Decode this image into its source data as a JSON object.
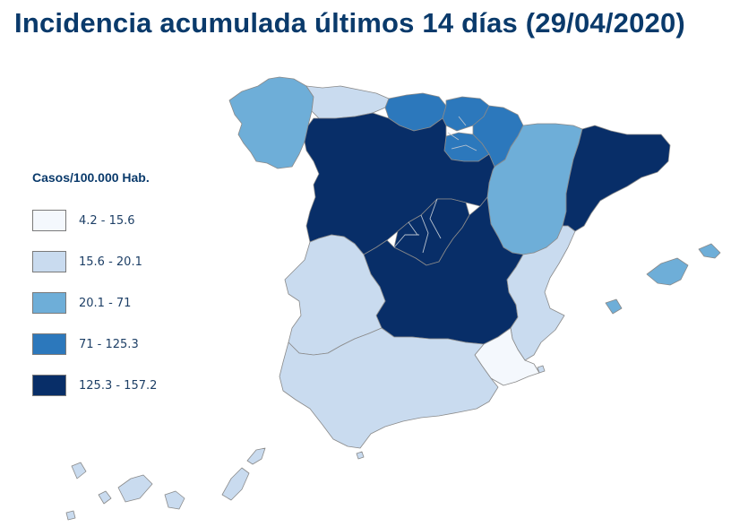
{
  "title": "Incidencia acumulada últimos 14 días (29/04/2020)",
  "legend": {
    "title": "Casos/100.000 Hab.",
    "items": [
      {
        "label": "4.2 - 15.6",
        "color": "#f4f8fd"
      },
      {
        "label": "15.6 - 20.1",
        "color": "#c9dbef"
      },
      {
        "label": "20.1 - 71",
        "color": "#6eaed8"
      },
      {
        "label": "71 - 125.3",
        "color": "#2c78bc"
      },
      {
        "label": "125.3 - 157.2",
        "color": "#082e68"
      }
    ]
  },
  "regions": [
    {
      "id": "galicia",
      "class": 2
    },
    {
      "id": "asturias",
      "class": 1
    },
    {
      "id": "cantabria",
      "class": 3
    },
    {
      "id": "pais-vasco",
      "class": 3
    },
    {
      "id": "navarra",
      "class": 3
    },
    {
      "id": "la-rioja",
      "class": 3
    },
    {
      "id": "aragon",
      "class": 2
    },
    {
      "id": "cataluna",
      "class": 4
    },
    {
      "id": "castilla-y-leon",
      "class": 4
    },
    {
      "id": "madrid",
      "class": 4
    },
    {
      "id": "castilla-la-mancha",
      "class": 4
    },
    {
      "id": "extremadura",
      "class": 1
    },
    {
      "id": "comunidad-valenciana",
      "class": 1
    },
    {
      "id": "murcia",
      "class": 0
    },
    {
      "id": "andalucia",
      "class": 1
    },
    {
      "id": "baleares",
      "class": 2
    },
    {
      "id": "canarias",
      "class": 1
    },
    {
      "id": "ceuta",
      "class": 1
    },
    {
      "id": "melilla",
      "class": 1
    }
  ]
}
